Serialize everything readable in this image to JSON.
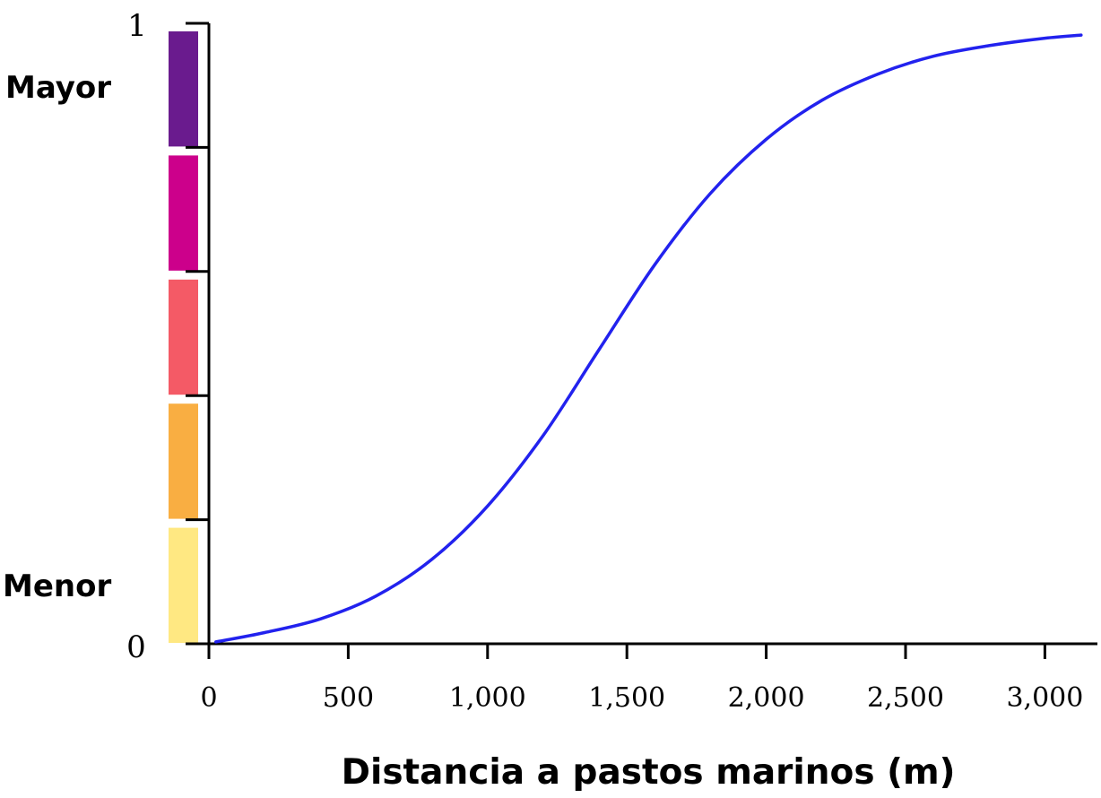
{
  "chart_data": {
    "type": "line",
    "title": "",
    "xlabel": "Distancia a pastos marinos (m)",
    "ylabel": "",
    "xlim": [
      0,
      3150
    ],
    "ylim": [
      0,
      1
    ],
    "x_ticks": [
      0,
      500,
      1000,
      1500,
      2000,
      2500,
      3000
    ],
    "x_tick_labels": [
      "0",
      "500",
      "1,000",
      "1,500",
      "2,000",
      "2,500",
      "3,000"
    ],
    "y_end_labels": {
      "bottom": "0",
      "top": "1"
    },
    "side_labels": {
      "high": "Mayor",
      "low": "Menor"
    },
    "color_bands": [
      {
        "from": 0.0,
        "to": 0.2,
        "color": "#FFE882"
      },
      {
        "from": 0.2,
        "to": 0.4,
        "color": "#F9AE42"
      },
      {
        "from": 0.4,
        "to": 0.6,
        "color": "#F45A66"
      },
      {
        "from": 0.6,
        "to": 0.8,
        "color": "#CC008B"
      },
      {
        "from": 0.8,
        "to": 1.0,
        "color": "#6A1B8E"
      }
    ],
    "series": [
      {
        "color": "#2222EE",
        "x": [
          25,
          200,
          400,
          600,
          800,
          1000,
          1200,
          1400,
          1600,
          1800,
          2000,
          2200,
          2400,
          2600,
          2800,
          3000,
          3130
        ],
        "y": [
          0.003,
          0.018,
          0.04,
          0.077,
          0.136,
          0.222,
          0.336,
          0.474,
          0.611,
          0.726,
          0.813,
          0.876,
          0.918,
          0.947,
          0.964,
          0.976,
          0.981
        ]
      }
    ]
  }
}
